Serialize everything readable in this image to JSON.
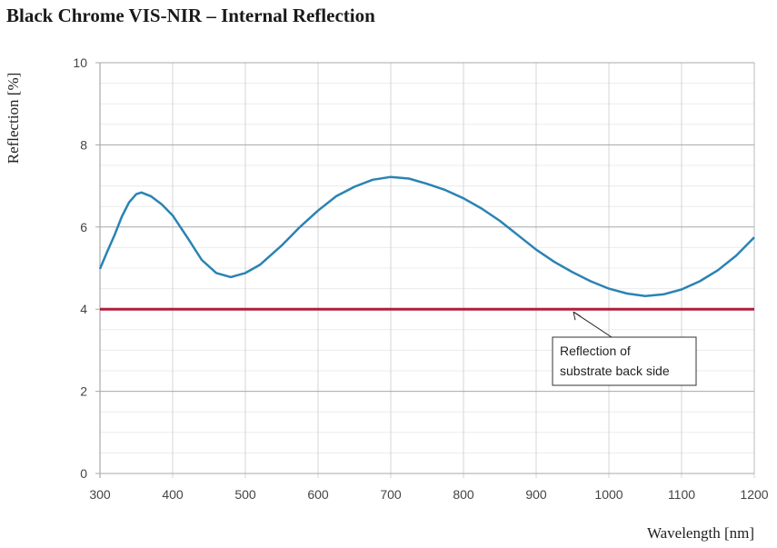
{
  "chart_data": {
    "type": "line",
    "title": "Black Chrome VIS-NIR – Internal Reflection",
    "xlabel": "Wavelength [nm]",
    "ylabel": "Reflection [%]",
    "xlim": [
      300,
      1200
    ],
    "ylim": [
      0,
      10
    ],
    "xticks": [
      300,
      400,
      500,
      600,
      700,
      800,
      900,
      1000,
      1100,
      1200
    ],
    "yticks": [
      0,
      2,
      4,
      6,
      8,
      10
    ],
    "grid": true,
    "series": [
      {
        "color": "#2a83b3",
        "x": [
          300,
          310,
          320,
          330,
          340,
          350,
          357,
          370,
          385,
          400,
          420,
          440,
          460,
          480,
          500,
          520,
          550,
          575,
          600,
          625,
          650,
          675,
          700,
          725,
          750,
          775,
          800,
          825,
          850,
          875,
          900,
          925,
          950,
          975,
          1000,
          1025,
          1050,
          1075,
          1100,
          1125,
          1150,
          1175,
          1200
        ],
        "y": [
          4.98,
          5.4,
          5.8,
          6.25,
          6.6,
          6.8,
          6.84,
          6.75,
          6.55,
          6.28,
          5.75,
          5.2,
          4.88,
          4.78,
          4.88,
          5.08,
          5.55,
          6.0,
          6.4,
          6.75,
          6.98,
          7.15,
          7.22,
          7.18,
          7.05,
          6.9,
          6.7,
          6.45,
          6.15,
          5.8,
          5.45,
          5.15,
          4.9,
          4.68,
          4.5,
          4.38,
          4.32,
          4.36,
          4.48,
          4.68,
          4.95,
          5.3,
          5.75
        ]
      },
      {
        "color": "#b01f3c",
        "x": [
          300,
          1200
        ],
        "y": [
          4.0,
          4.0
        ]
      }
    ],
    "annotations": [
      {
        "text_lines": [
          "Reflection of",
          "substrate back side"
        ],
        "points_to": [
          970,
          4.0
        ]
      }
    ]
  }
}
